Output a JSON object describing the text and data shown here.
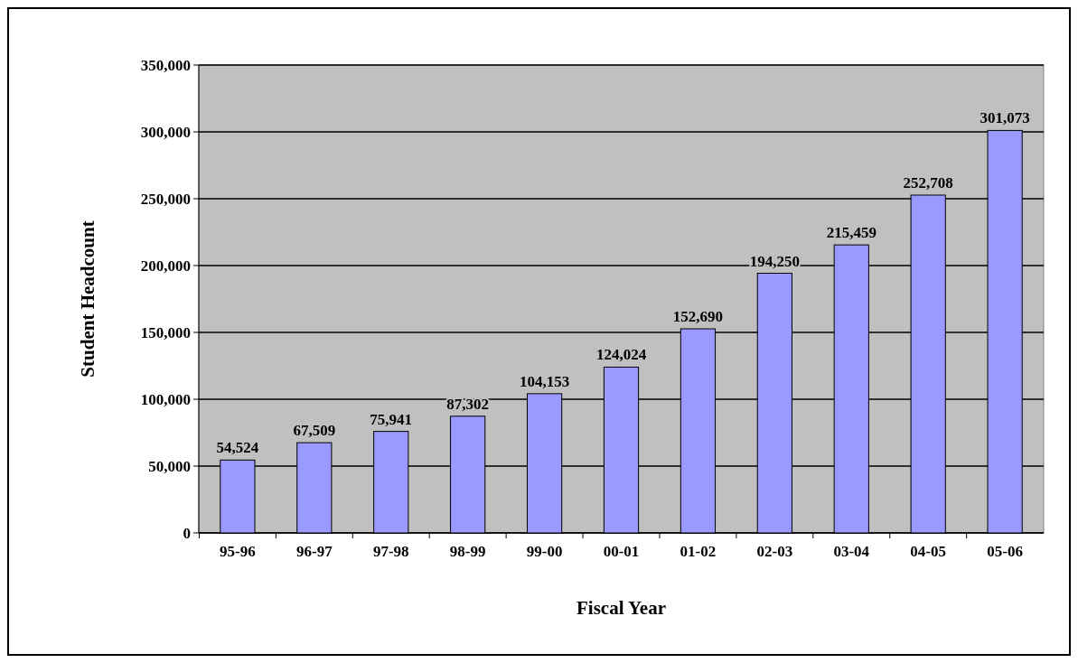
{
  "chart_data": {
    "type": "bar",
    "xlabel": "Fiscal Year",
    "ylabel": "Student Headcount",
    "categories": [
      "95-96",
      "96-97",
      "97-98",
      "98-99",
      "99-00",
      "00-01",
      "01-02",
      "02-03",
      "03-04",
      "04-05",
      "05-06"
    ],
    "values": [
      54524,
      67509,
      75941,
      87302,
      104153,
      124024,
      152690,
      194250,
      215459,
      252708,
      301073
    ],
    "color": "#9999ff",
    "ylim": [
      0,
      350000
    ],
    "yticks": [
      {
        "value": 0,
        "label": "0"
      },
      {
        "value": 50000,
        "label": "50,000"
      },
      {
        "value": 100000,
        "label": "100,000"
      },
      {
        "value": 150000,
        "label": "150,000"
      },
      {
        "value": 200000,
        "label": "200,000"
      },
      {
        "value": 250000,
        "label": "250,000"
      },
      {
        "value": 300000,
        "label": "300,000"
      },
      {
        "value": 350000,
        "label": "350,000"
      }
    ],
    "value_labels": [
      "54,524",
      "67,509",
      "75,941",
      "87,302",
      "104,153",
      "124,024",
      "152,690",
      "194,250",
      "215,459",
      "252,708",
      "301,073"
    ],
    "grid": "y"
  }
}
